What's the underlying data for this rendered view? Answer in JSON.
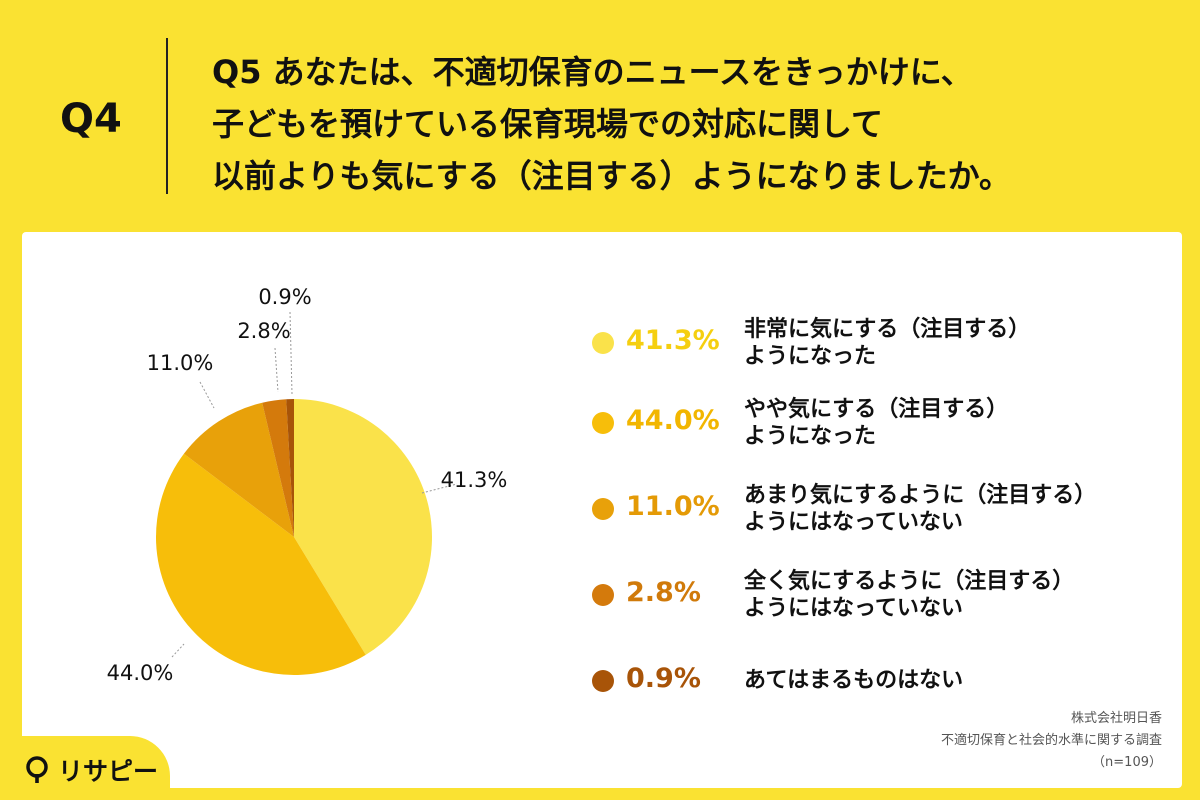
{
  "header": {
    "qnum": "Q4",
    "question_lines": [
      "Q5 あなたは、不適切保育のニュースをきっかけに、",
      "子どもを預けている保育現場での対応に関して",
      "以前よりも気にする（注目する）ようになりましたか。"
    ]
  },
  "chart_data": {
    "type": "pie",
    "start_angle_deg": 0,
    "direction": "clockwise",
    "slices": [
      {
        "value": 41.3,
        "label": "41.3%",
        "legend_lines": [
          "非常に気にする（注目する）",
          "ようになった"
        ],
        "color": "#FAE24A"
      },
      {
        "value": 44.0,
        "label": "44.0%",
        "legend_lines": [
          "やや気にする（注目する）",
          "ようになった"
        ],
        "color": "#F7BE0A"
      },
      {
        "value": 11.0,
        "label": "11.0%",
        "legend_lines": [
          "あまり気にするように（注目する）",
          "ようにはなっていない"
        ],
        "color": "#E8A10A"
      },
      {
        "value": 2.8,
        "label": "2.8%",
        "legend_lines": [
          "全く気にするように（注目する）",
          "ようにはなっていない"
        ],
        "color": "#D47A0C"
      },
      {
        "value": 0.9,
        "label": "0.9%",
        "legend_lines": [
          "あてはまるものはない"
        ],
        "color": "#A85408"
      }
    ]
  },
  "source": {
    "line1": "株式会社明日香",
    "line2": "不適切保育と社会的水準に関する調査",
    "line3": "（n=109）"
  },
  "logo": {
    "text": "リサピー"
  }
}
